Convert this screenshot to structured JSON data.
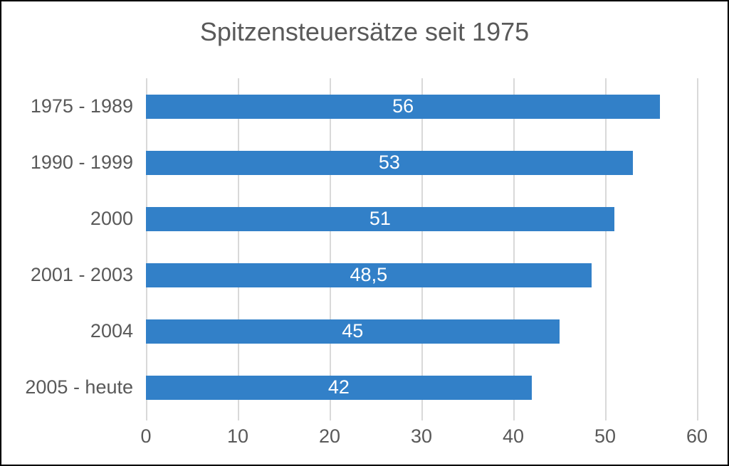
{
  "chart_data": {
    "type": "bar",
    "orientation": "horizontal",
    "title": "Spitzensteuersätze seit 1975",
    "categories": [
      "1975 - 1989",
      "1990 - 1999",
      "2000",
      "2001 - 2003",
      "2004",
      "2005 - heute"
    ],
    "values": [
      56,
      53,
      51,
      48.5,
      45,
      42
    ],
    "value_labels": [
      "56",
      "53",
      "51",
      "48,5",
      "45",
      "42"
    ],
    "xlim": [
      0,
      60
    ],
    "x_ticks": [
      "0",
      "10",
      "20",
      "30",
      "40",
      "50",
      "60"
    ],
    "xlabel": "",
    "ylabel": "",
    "grid": "vertical-only",
    "legend": "none",
    "colors": {
      "bar": "#3280c8",
      "bar_value_text": "#ffffff",
      "axis_text": "#595959",
      "title_text": "#595959",
      "gridline": "#d9d9d9",
      "background": "#ffffff",
      "frame_border": "#000000"
    }
  }
}
